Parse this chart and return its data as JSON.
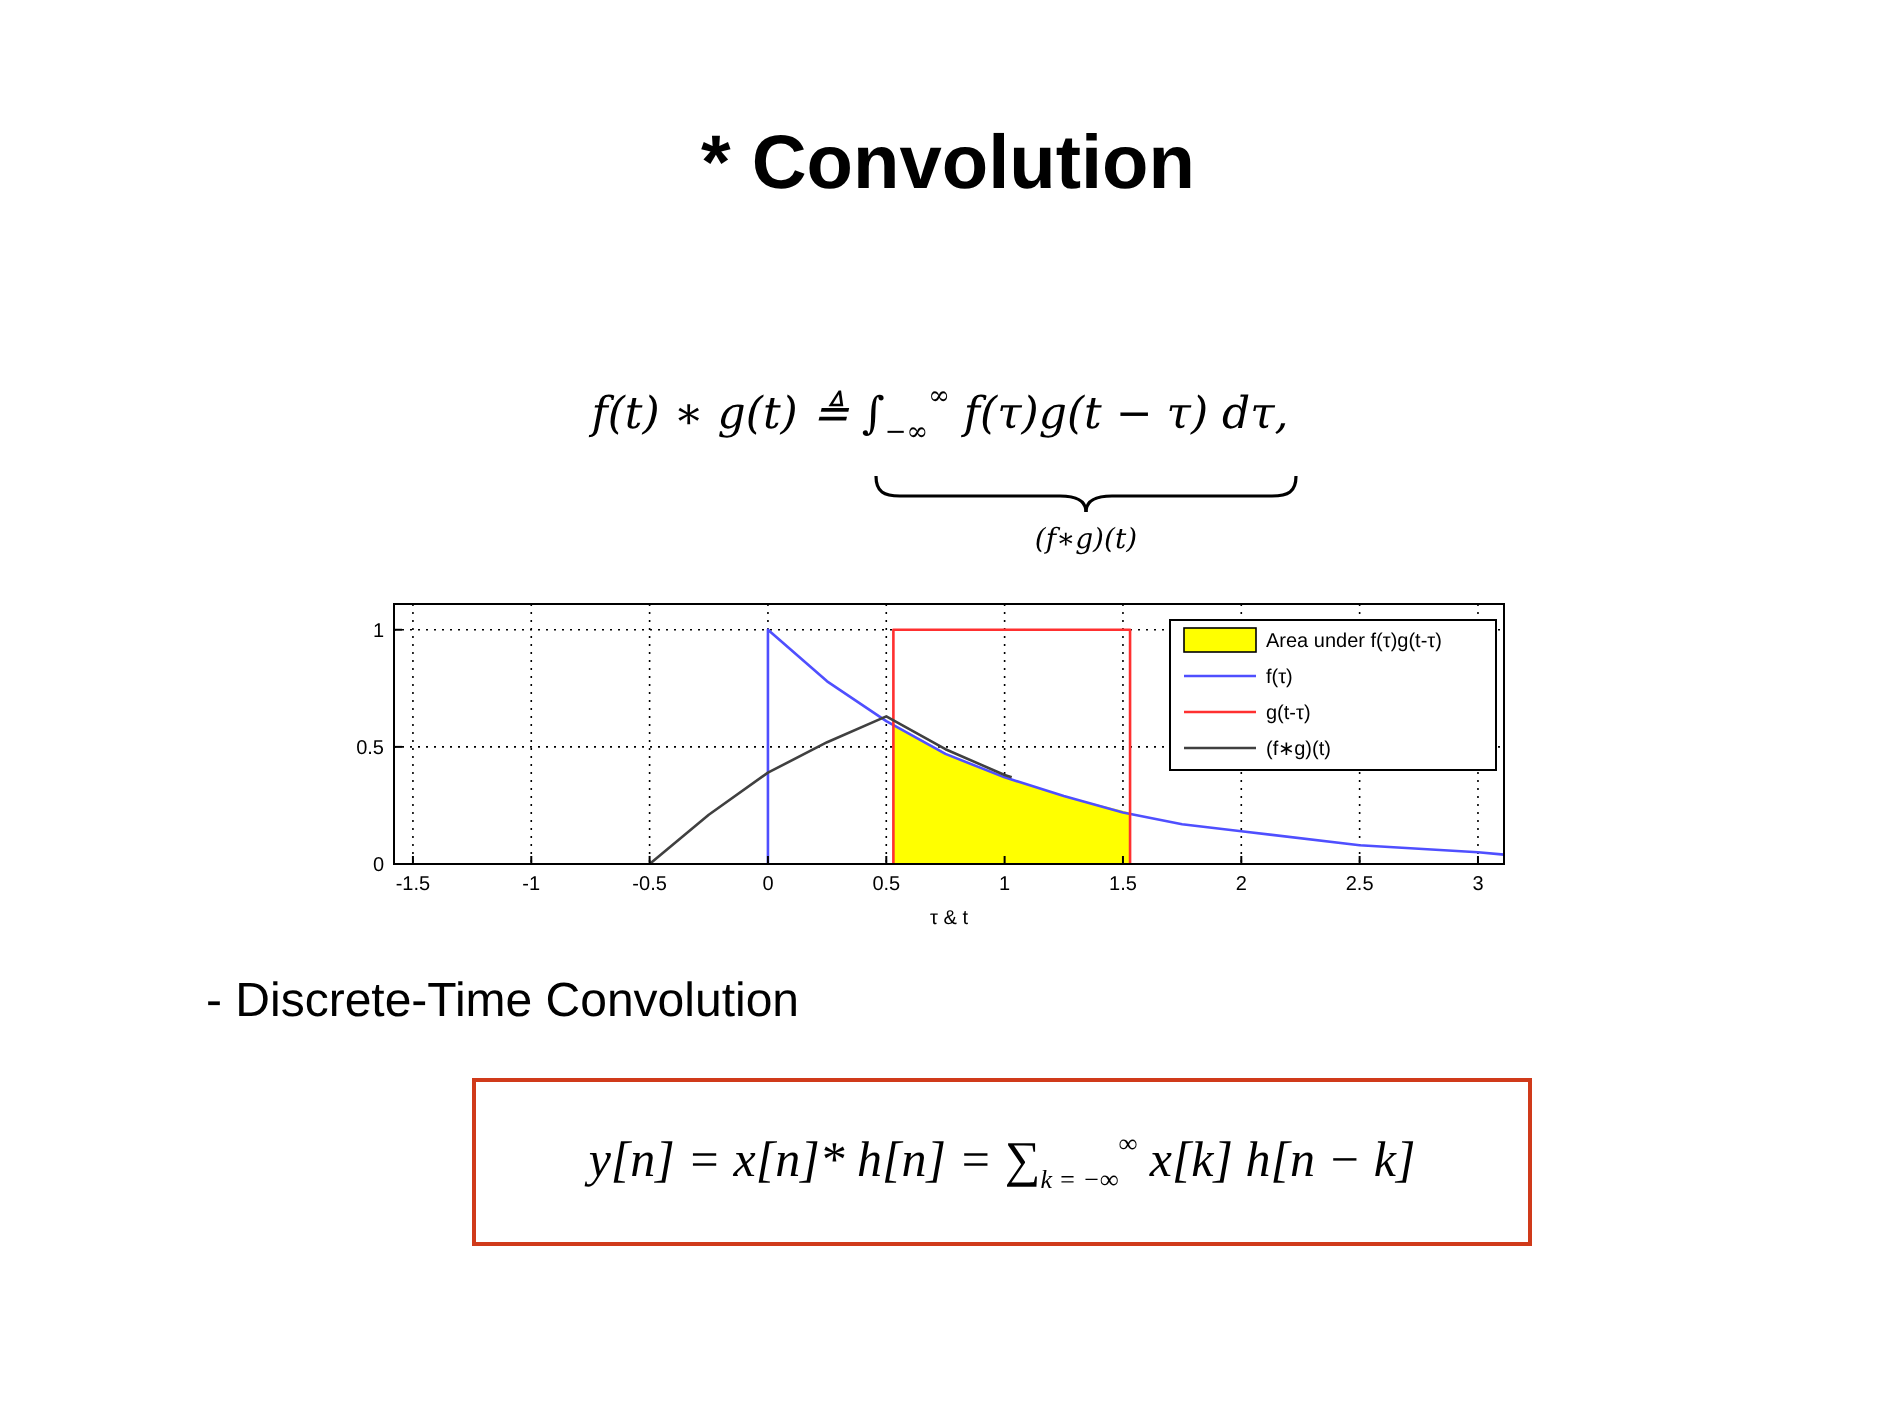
{
  "chart_data": {
    "type": "line",
    "title": "* Convolution",
    "annotations": [
      "f(t) ∗ g(t) ≜ ∫$_{−∞}$$^{∞}$ f(τ)g(t − τ) dτ,",
      "(f∗g)(t)",
      "- Discrete-Time Convolution",
      "y[n] = x[n]* h[n] = ∑$_{k = −∞}$$^{∞}$ x[k]  h[n − k]"
    ],
    "xlabel": "τ & t",
    "xlim": [
      -1.58,
      3.11
    ],
    "ylim": [
      0,
      1.11
    ],
    "xticks": [
      -1.5,
      -1,
      -0.5,
      0,
      0.5,
      1,
      1.5,
      2,
      2.5,
      3
    ],
    "yticks": [
      0,
      0.5,
      1
    ],
    "grid": true,
    "legend": "top right",
    "marker": "none",
    "line_style": "solid",
    "series": [
      {
        "name": "Area under f(τ)g(t-τ)",
        "type": "area",
        "color": "#ffff00",
        "x": [
          0.53,
          0.75,
          1,
          1.25,
          1.53
        ],
        "values": [
          0.59,
          0.47,
          0.37,
          0.29,
          0.22
        ]
      },
      {
        "name": "f(τ)",
        "color": "#4f4fff",
        "x": [
          0,
          0,
          0.25,
          0.5,
          0.75,
          1,
          1.25,
          1.5,
          1.75,
          2,
          2.5,
          3,
          3.11
        ],
        "values": [
          0,
          1,
          0.78,
          0.61,
          0.47,
          0.37,
          0.29,
          0.22,
          0.17,
          0.14,
          0.08,
          0.05,
          0.04
        ]
      },
      {
        "name": "g(t-τ)",
        "color": "#ff3030",
        "x": [
          0.53,
          0.53,
          1.53,
          1.53
        ],
        "values": [
          0,
          1,
          1,
          0
        ]
      },
      {
        "name": "(f∗g)(t)",
        "color": "#404040",
        "x": [
          -0.5,
          -0.25,
          0,
          0.25,
          0.5,
          0.75,
          1,
          1.03
        ],
        "values": [
          0,
          0.21,
          0.39,
          0.52,
          0.63,
          0.49,
          0.38,
          0.37
        ]
      }
    ]
  }
}
